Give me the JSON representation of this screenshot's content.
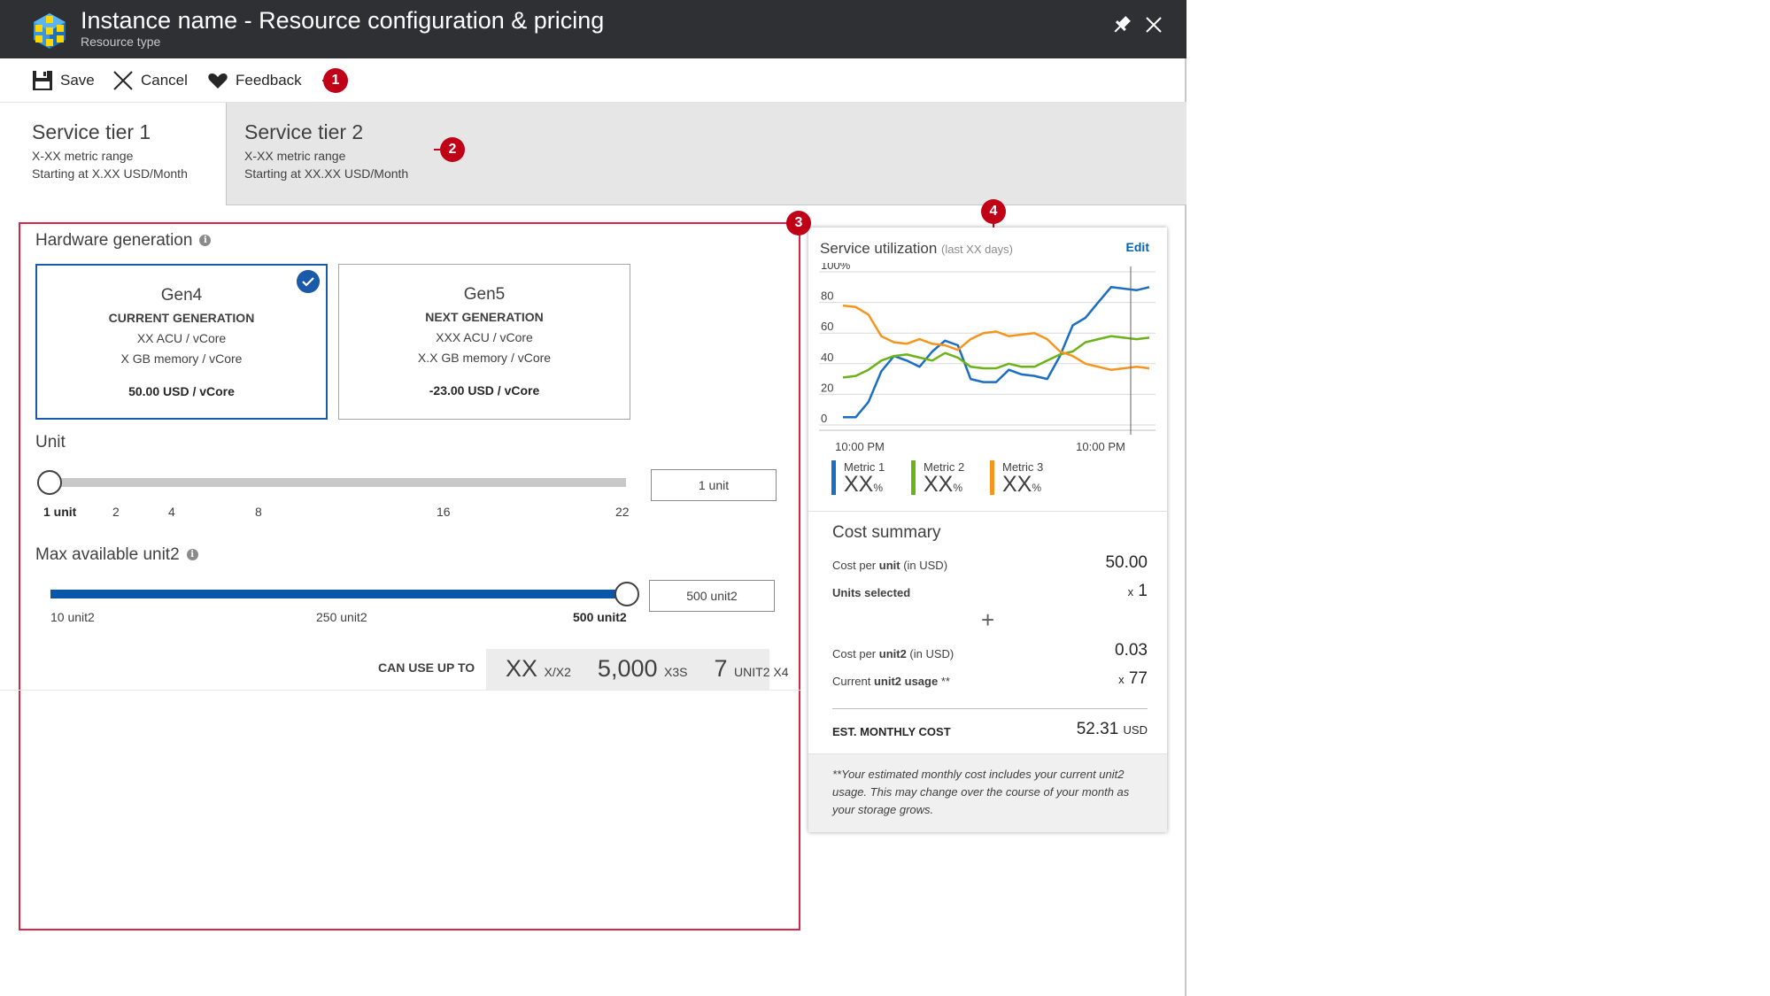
{
  "header": {
    "title": "Instance name - Resource configuration & pricing",
    "subtitle": "Resource type",
    "logo_icon": "resource-cube-icon",
    "pin_icon": "pin-icon",
    "close_icon": "close-icon"
  },
  "toolbar": {
    "save_label": "Save",
    "cancel_label": "Cancel",
    "feedback_label": "Feedback"
  },
  "callouts": [
    "1",
    "2",
    "3",
    "4"
  ],
  "tabs": [
    {
      "title": "Service tier 1",
      "range": "X-XX metric range",
      "price": "Starting at X.XX USD/Month",
      "selected": true
    },
    {
      "title": "Service tier 2",
      "range": "X-XX metric range",
      "price": "Starting at XX.XX USD/Month",
      "selected": false
    }
  ],
  "hardware": {
    "label": "Hardware generation",
    "info": "i",
    "cards": [
      {
        "name": "Gen4",
        "generation": "CURRENT GENERATION",
        "acu": "XX ACU / vCore",
        "memory": "X GB memory / vCore",
        "price": "50.00 USD / vCore",
        "selected": true
      },
      {
        "name": "Gen5",
        "generation": "NEXT GENERATION",
        "acu": "XXX ACU / vCore",
        "memory": "X.X GB memory / vCore",
        "price": "-23.00 USD / vCore",
        "selected": false
      }
    ]
  },
  "unit": {
    "label": "Unit",
    "ticks": [
      "1 unit",
      "2",
      "4",
      "8",
      "16",
      "22"
    ],
    "value_label": "1 unit",
    "level": 0
  },
  "max_unit2": {
    "label": "Max available unit2",
    "info": "i",
    "ticks": [
      "10 unit2",
      "250 unit2",
      "500 unit2"
    ],
    "value_label": "500 unit2",
    "level": 1
  },
  "can_use": {
    "label": "CAN USE UP TO",
    "v1": "XX",
    "u1": "X/X2",
    "v2": "5,000",
    "u2": "X3S",
    "v3": "7",
    "u3": "UNIT2 X4"
  },
  "utilization": {
    "title": "Service utilization",
    "subtitle": "(last XX days)",
    "edit_label": "Edit",
    "legend": [
      {
        "name": "Metric 1",
        "value": "XX",
        "unit": "%",
        "color": "#1b6ec2"
      },
      {
        "name": "Metric 2",
        "value": "XX",
        "unit": "%",
        "color": "#6cb219"
      },
      {
        "name": "Metric 3",
        "value": "XX",
        "unit": "%",
        "color": "#f7941d"
      }
    ]
  },
  "chart_data": {
    "type": "line",
    "yticks": [
      "100%",
      "80",
      "60",
      "40",
      "20",
      "0"
    ],
    "xticks": [
      "10:00 PM",
      "10:00 PM"
    ],
    "ylim": [
      0,
      100
    ],
    "series": [
      {
        "name": "Metric 1",
        "color": "#1b6ec2",
        "values": [
          5,
          5,
          15,
          35,
          45,
          42,
          38,
          48,
          55,
          52,
          30,
          28,
          28,
          36,
          33,
          32,
          30,
          45,
          65,
          70,
          80,
          90,
          89,
          88,
          90
        ]
      },
      {
        "name": "Metric 2",
        "color": "#6cb219",
        "values": [
          31,
          32,
          36,
          42,
          45,
          46,
          44,
          42,
          47,
          44,
          38,
          37,
          37,
          40,
          38,
          38,
          42,
          46,
          48,
          54,
          56,
          58,
          57,
          56,
          57
        ]
      },
      {
        "name": "Metric 3",
        "color": "#f7941d",
        "values": [
          78,
          77,
          72,
          58,
          54,
          53,
          56,
          53,
          52,
          49,
          56,
          60,
          61,
          58,
          59,
          60,
          56,
          48,
          45,
          40,
          38,
          36,
          37,
          38,
          37
        ]
      }
    ]
  },
  "cost": {
    "title": "Cost summary",
    "per_unit_pre": "Cost per ",
    "per_unit_bold": "unit",
    "per_unit_post": " (in USD)",
    "per_unit_value": "50.00",
    "units_selected_label": "Units selected",
    "units_selected_x": "x",
    "units_selected_value": "1",
    "plus": "+",
    "per_unit2_pre": "Cost per ",
    "per_unit2_bold": "unit2",
    "per_unit2_post": " (in USD)",
    "per_unit2_value": "0.03",
    "usage_pre": "Current ",
    "usage_bold": "unit2 usage",
    "usage_post": " **",
    "usage_x": "x",
    "usage_value": "77",
    "est_label": "EST. MONTHLY COST",
    "est_value": "52.31",
    "est_currency": "USD",
    "footnote": "**Your estimated monthly cost includes your current unit2 usage. This may change over the course of your month as your storage grows."
  }
}
